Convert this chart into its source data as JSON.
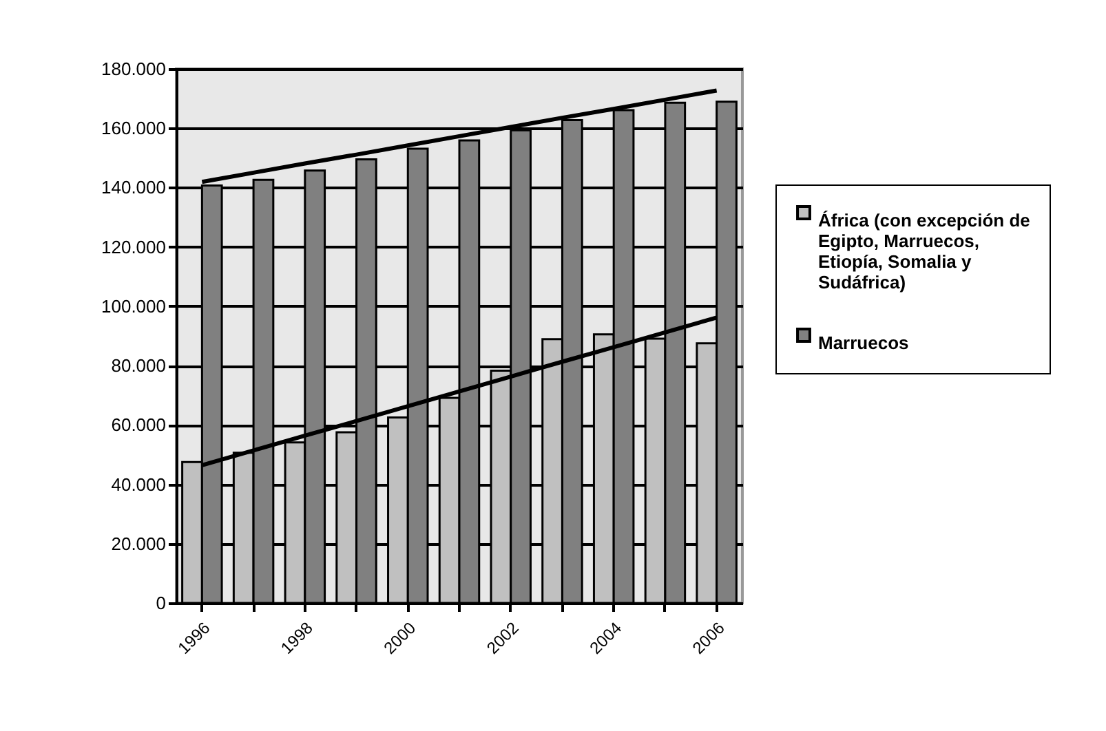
{
  "chart_data": {
    "type": "bar",
    "categories": [
      "1996",
      null,
      "1998",
      null,
      "2000",
      null,
      "2002",
      null,
      "2004",
      null,
      "2006"
    ],
    "series": [
      {
        "name": "África (con excepción de Egipto, Marruecos, Etiopía, Somalia y Sudáfrica)",
        "color": "#c0c0c0",
        "values": [
          47500,
          50600,
          54100,
          57500,
          62500,
          69100,
          78300,
          88900,
          90500,
          89100,
          87500
        ]
      },
      {
        "name": "Marruecos",
        "color": "#808080",
        "values": [
          140700,
          142600,
          145700,
          149500,
          153100,
          155900,
          159300,
          162700,
          166100,
          168600,
          168900
        ]
      },
      {
        "type": "line",
        "color": "#000000",
        "values": [
          141900,
          145000,
          148100,
          151100,
          154200,
          157300,
          160400,
          163500,
          166500,
          169600,
          172700
        ]
      },
      {
        "type": "line",
        "color": "#000000",
        "values": [
          46400,
          51400,
          56400,
          61300,
          66300,
          71300,
          76300,
          81300,
          86200,
          91200,
          96200
        ]
      }
    ],
    "ylim": [
      0,
      180000
    ],
    "yticks": [
      {
        "value": 0,
        "label": "0"
      },
      {
        "value": 20000,
        "label": "20.000"
      },
      {
        "value": 40000,
        "label": "40.000"
      },
      {
        "value": 60000,
        "label": "60.000"
      },
      {
        "value": 80000,
        "label": "80.000"
      },
      {
        "value": 100000,
        "label": "100.000"
      },
      {
        "value": 120000,
        "label": "120.000"
      },
      {
        "value": 140000,
        "label": "140.000"
      },
      {
        "value": 160000,
        "label": "160.000"
      },
      {
        "value": 180000,
        "label": "180.000"
      }
    ],
    "grid": "y",
    "legend": "right"
  }
}
